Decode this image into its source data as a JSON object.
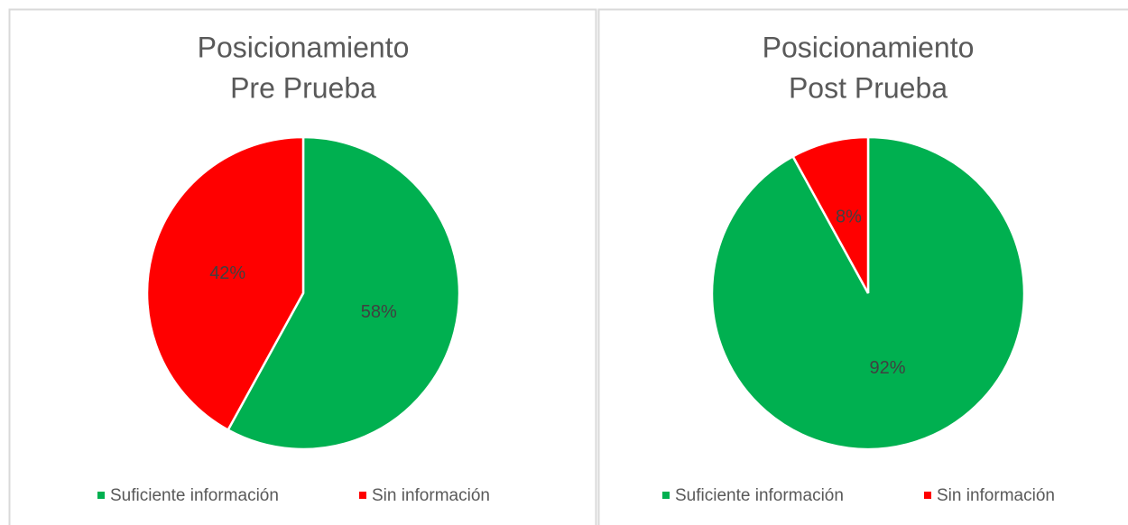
{
  "chart_data": [
    {
      "type": "pie",
      "title": [
        "Posicionamiento",
        "Pre Prueba"
      ],
      "categories": [
        "Suficiente información",
        "Sin información"
      ],
      "values": [
        58,
        42
      ],
      "value_labels": [
        "58%",
        "42%"
      ],
      "colors": [
        "#00b050",
        "#ff0000"
      ],
      "legend": "bottom"
    },
    {
      "type": "pie",
      "title": [
        "Posicionamiento",
        "Post Prueba"
      ],
      "categories": [
        "Suficiente información",
        "Sin información"
      ],
      "values": [
        92,
        8
      ],
      "value_labels": [
        "92%",
        "8%"
      ],
      "colors": [
        "#00b050",
        "#ff0000"
      ],
      "legend": "bottom"
    }
  ]
}
